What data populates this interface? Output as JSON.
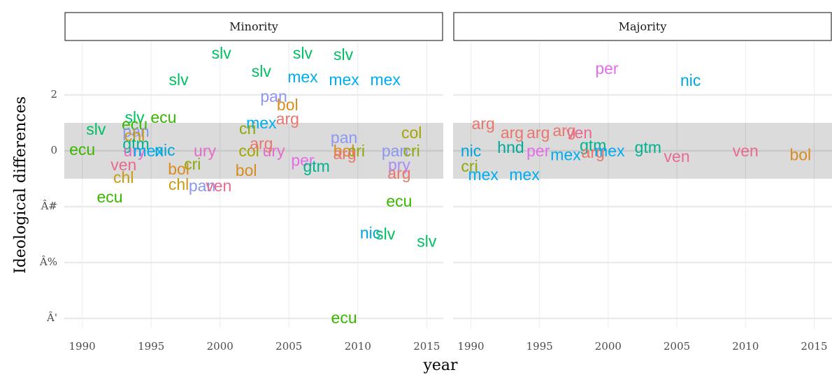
{
  "chart_data": [
    {
      "type": "scatter",
      "title": "Minority",
      "xlabel": "year",
      "ylabel": "Ideological differences",
      "xlim": [
        1988.7,
        2016.2
      ],
      "ylim": [
        -6.35,
        3.9
      ],
      "xticks": [
        1990,
        1995,
        2000,
        2005,
        2010,
        2015
      ],
      "yticks": [
        2,
        0,
        {
          "value": -2,
          "label": "Â#"
        },
        {
          "value": -4,
          "label": "Â%"
        },
        {
          "value": -6,
          "label": "Â'"
        }
      ],
      "band": [
        -1,
        1
      ],
      "grid": true,
      "colors": {
        "arg": "#e8766d",
        "bol": "#d98b1e",
        "chl": "#c99b0e",
        "col": "#a3a500",
        "cri": "#8da80a",
        "ecu": "#39b600",
        "gtm": "#00b28e",
        "hnd": "#00a99a",
        "mex": "#00adef",
        "nic": "#00a5d8",
        "pan": "#8d97f0",
        "per": "#e46de8",
        "pry": "#a88df5",
        "slv": "#00bf60",
        "ury": "#e26dc8",
        "ven": "#e76b8e"
      },
      "labels": [
        "slv",
        "slv",
        "slv",
        "slv",
        "slv",
        "mex",
        "mex",
        "mex",
        "pan",
        "bol",
        "arg",
        "mex",
        "cri",
        "slv",
        "ecu",
        "slv",
        "ecu",
        "pan",
        "chl",
        "gtm",
        "ecu",
        "ury",
        "mex",
        "nic",
        "ury",
        "col",
        "ury",
        "arg",
        "per",
        "gtm",
        "pan",
        "bol",
        "cri",
        "arg",
        "col",
        "pan",
        "cri",
        "pry",
        "arg",
        "ven",
        "chl",
        "cri",
        "bol",
        "chl",
        "pan",
        "ven",
        "bol",
        "ecu",
        "ecu",
        "nic",
        "slv",
        "slv",
        "ecu"
      ],
      "x": [
        2000.1,
        2006.0,
        2008.95,
        1997.0,
        2003.0,
        2006.0,
        2009.0,
        2012.0,
        2003.9,
        2004.9,
        2004.9,
        2003.0,
        2002.0,
        1993.8,
        1995.9,
        1991.0,
        1993.8,
        1993.9,
        1993.8,
        1993.9,
        1990.0,
        1993.8,
        1994.8,
        1996.0,
        1998.9,
        2002.1,
        2003.9,
        2003.0,
        2006.0,
        2007.0,
        2009.0,
        2009.0,
        2009.9,
        2009.05,
        2013.9,
        2012.7,
        2013.9,
        2013.0,
        2013.0,
        1993.0,
        1993.0,
        1998.0,
        1997.0,
        1997.0,
        1998.7,
        1999.9,
        2001.9,
        1992.0,
        2013.0,
        2010.9,
        2012.0,
        2015.0,
        2009.0
      ],
      "values": [
        3.45,
        3.45,
        3.4,
        2.5,
        2.8,
        2.6,
        2.5,
        2.5,
        1.9,
        1.6,
        1.1,
        0.95,
        0.75,
        1.15,
        1.15,
        0.73,
        0.9,
        0.65,
        0.5,
        0.2,
        0,
        -0.05,
        -0.05,
        -0.02,
        -0.05,
        -0.05,
        -0.05,
        0.22,
        -0.38,
        -0.6,
        0.43,
        -0.05,
        -0.05,
        -0.15,
        0.6,
        -0.05,
        -0.05,
        -0.55,
        -0.85,
        -0.55,
        -1.0,
        -0.52,
        -0.7,
        -1.25,
        -1.3,
        -1.3,
        -0.75,
        -1.7,
        -1.85,
        -2.98,
        -3.02,
        -3.28,
        -6.02
      ]
    },
    {
      "type": "scatter",
      "title": "Majority",
      "xlim": [
        1988.7,
        2016.3
      ],
      "ylim": [
        -6.35,
        3.9
      ],
      "xticks": [
        1990,
        1995,
        2000,
        2005,
        2010,
        2015
      ],
      "yticks": [
        2,
        0,
        -2,
        -4,
        -6
      ],
      "band": [
        -1,
        1
      ],
      "grid": true,
      "colors": {
        "arg": "#e8766d",
        "bol": "#d98b1e",
        "cri": "#8da80a",
        "gtm": "#00b28e",
        "hnd": "#00a99a",
        "mex": "#00adef",
        "nic": "#00a5d8",
        "per": "#e46de8",
        "ven": "#e76b8e"
      },
      "labels": [
        "per",
        "nic",
        "arg",
        "arg",
        "arg",
        "arg",
        "ven",
        "hnd",
        "per",
        "mex",
        "gtm",
        "arg",
        "mex",
        "gtm",
        "ven",
        "ven",
        "bol",
        "nic",
        "cri",
        "mex",
        "mex"
      ],
      "x": [
        1999.9,
        2006.0,
        1990.9,
        1993.0,
        1994.9,
        1996.8,
        1997.9,
        1992.9,
        1994.9,
        1996.9,
        1998.9,
        1998.9,
        2000.1,
        2002.9,
        2005.0,
        2010.0,
        2014.0,
        1990.0,
        1989.9,
        1990.9,
        1993.9
      ],
      "values": [
        2.9,
        2.48,
        0.93,
        0.6,
        0.6,
        0.68,
        0.6,
        0.08,
        -0.05,
        -0.18,
        0.15,
        -0.1,
        -0.05,
        0.08,
        -0.25,
        -0.05,
        -0.18,
        -0.05,
        -0.6,
        -0.9,
        -0.9
      ]
    }
  ]
}
